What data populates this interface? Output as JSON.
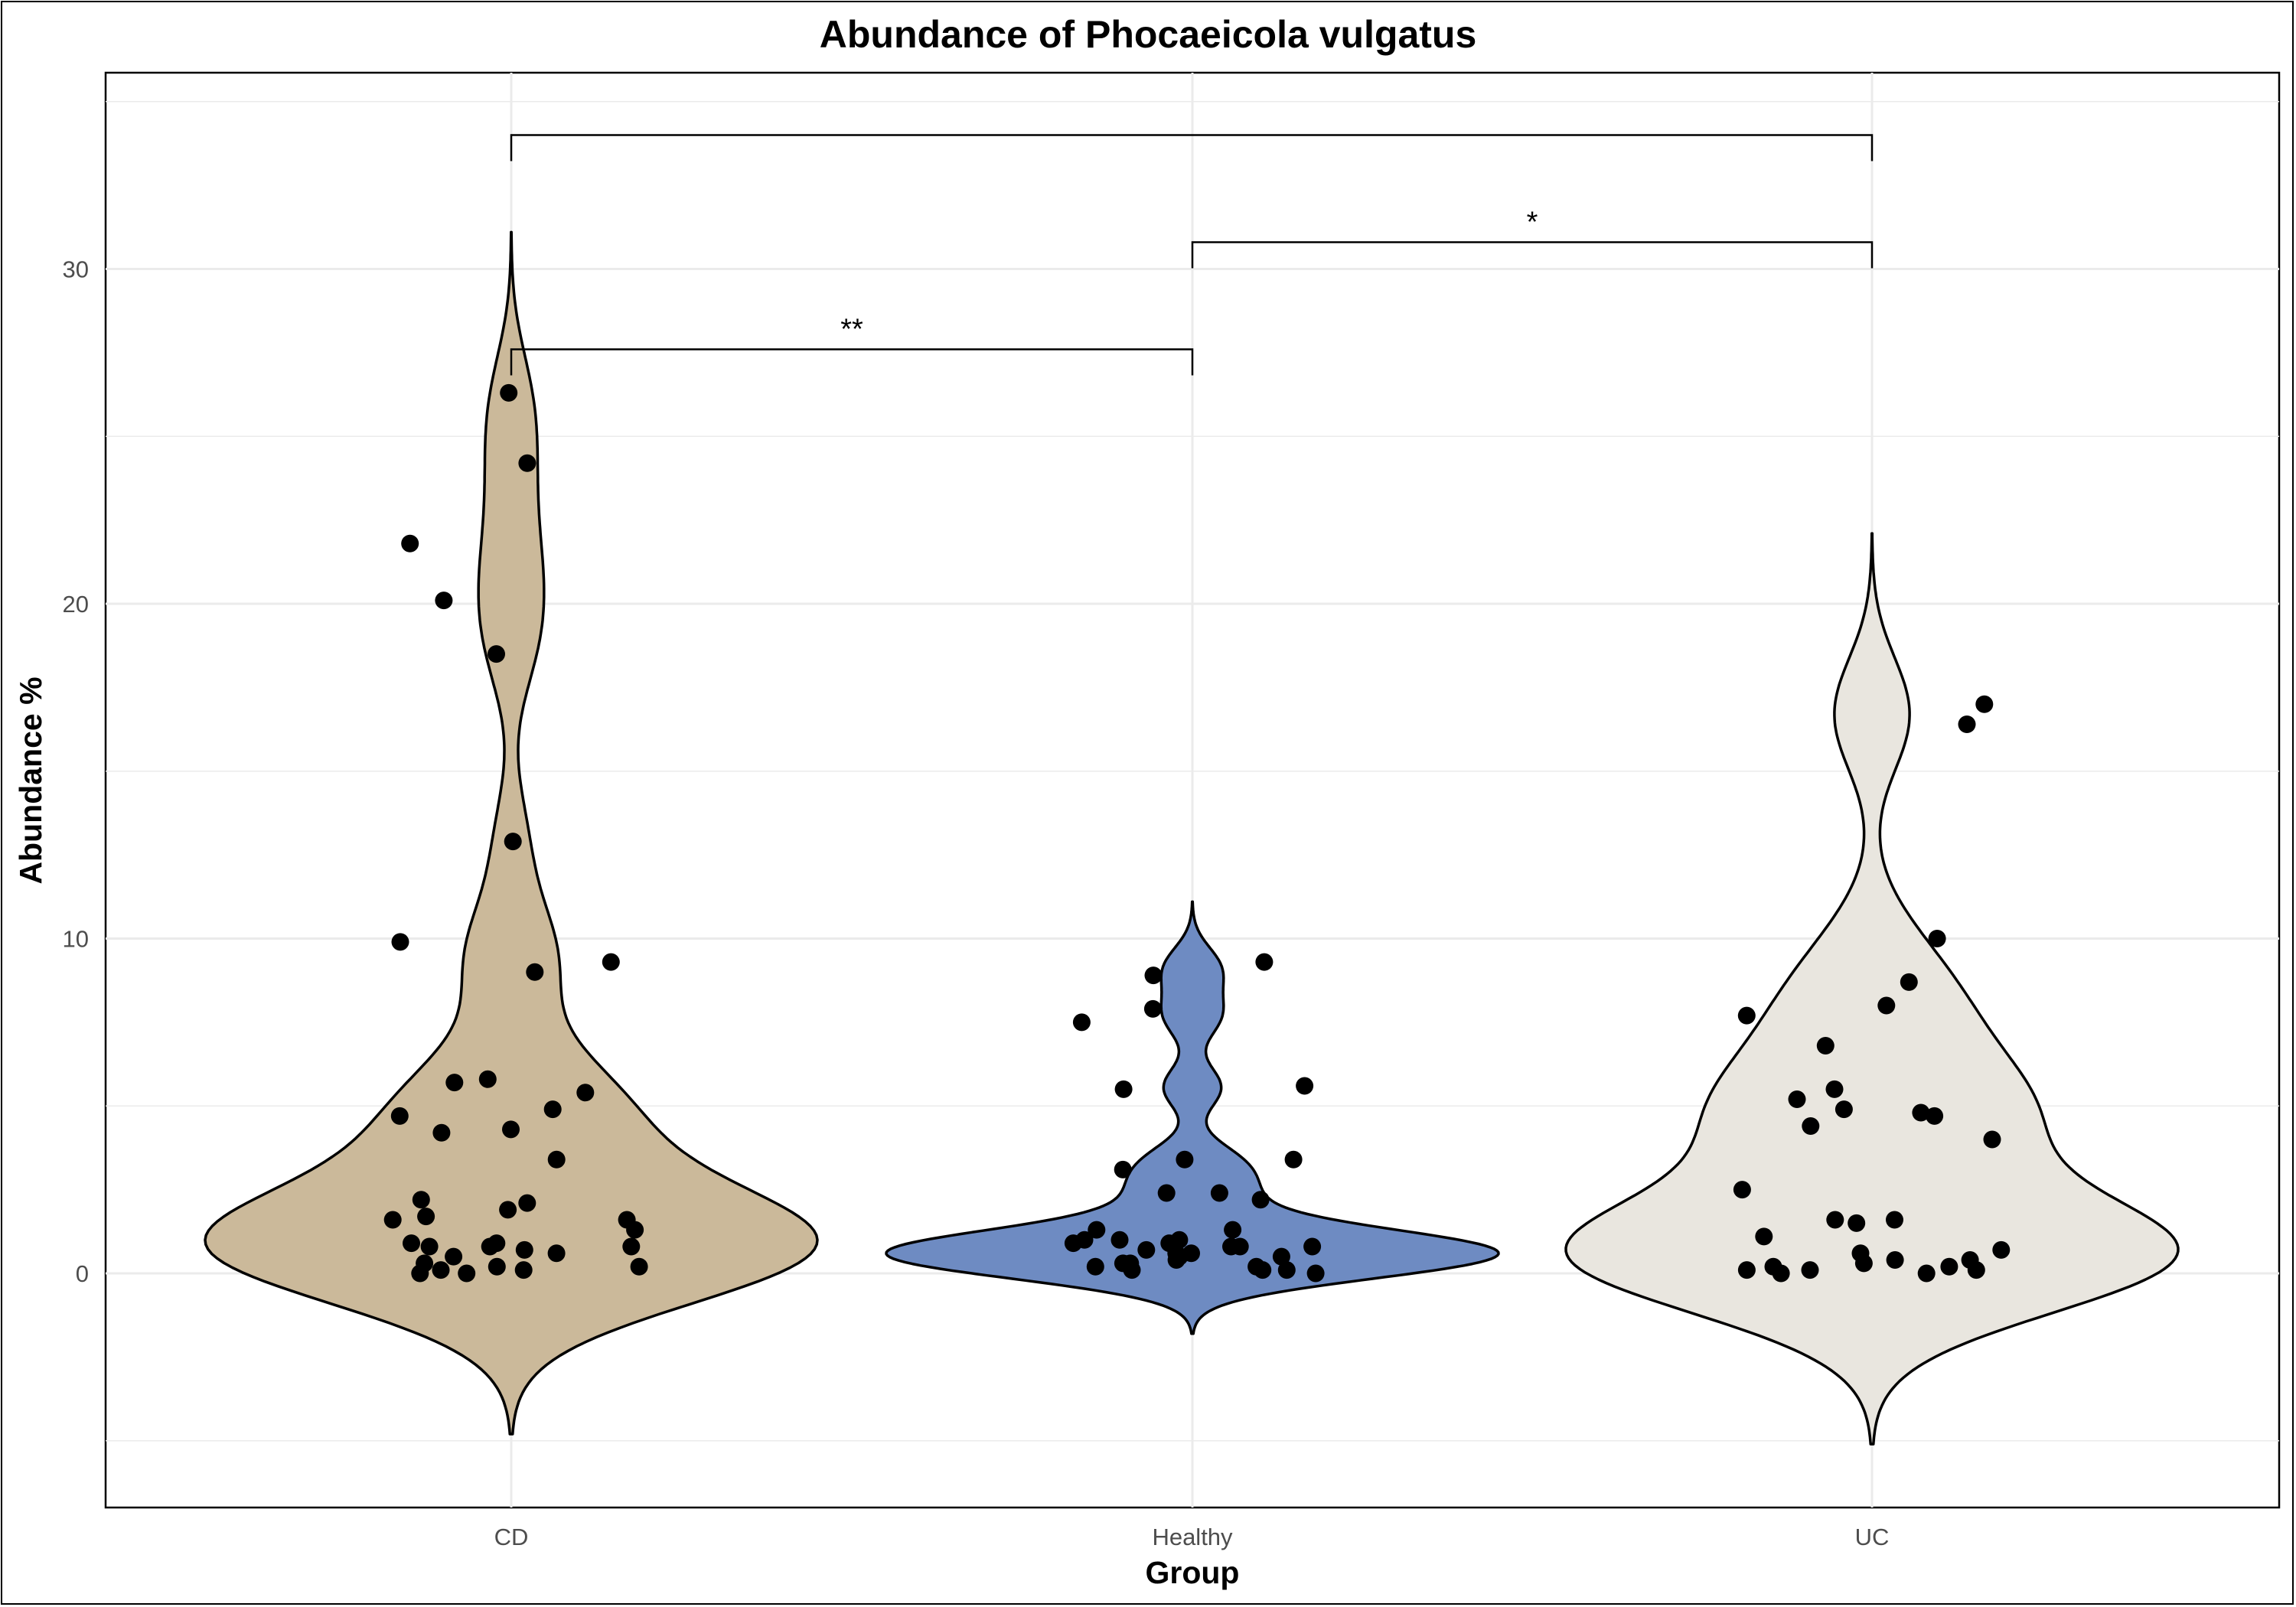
{
  "chart_data": {
    "type": "violin",
    "title": "Abundance of Phocaeicola vulgatus",
    "xlabel": "Group",
    "ylabel": "Abundance %",
    "categories": [
      "CD",
      "Healthy",
      "UC"
    ],
    "ylim": [
      -6.9,
      36.0
    ],
    "y_ticks": [
      0,
      10,
      20,
      30
    ],
    "y_tick_labels": [
      "0",
      "10",
      "20",
      "30"
    ],
    "grid": true,
    "legend": "none",
    "colors": {
      "CD": "#cbb99a",
      "Healthy": "#6e8bc2",
      "UC": "#e9e6df",
      "points": "#000000",
      "grid": "#ebebeb"
    },
    "series": [
      {
        "name": "CD",
        "values": [
          26.3,
          24.2,
          21.8,
          20.1,
          18.5,
          12.9,
          9.9,
          9.3,
          9.0,
          5.8,
          5.7,
          5.4,
          4.9,
          4.7,
          4.3,
          4.2,
          3.4,
          2.2,
          2.1,
          1.9,
          1.7,
          1.6,
          1.6,
          1.3,
          0.9,
          0.9,
          0.8,
          0.8,
          0.8,
          0.7,
          0.6,
          0.5,
          0.3,
          0.2,
          0.2,
          0.1,
          0.1,
          0.0,
          0.0
        ],
        "violin_min": -4.8,
        "violin_max": 31.1
      },
      {
        "name": "Healthy",
        "values": [
          9.3,
          8.9,
          7.9,
          7.5,
          5.6,
          5.5,
          3.4,
          3.4,
          3.1,
          2.4,
          2.4,
          2.2,
          1.3,
          1.3,
          1.0,
          1.0,
          1.0,
          0.9,
          0.9,
          0.8,
          0.8,
          0.8,
          0.7,
          0.6,
          0.6,
          0.6,
          0.5,
          0.5,
          0.4,
          0.3,
          0.3,
          0.2,
          0.2,
          0.1,
          0.1,
          0.1,
          0.0
        ],
        "violin_min": -1.8,
        "violin_max": 11.1
      },
      {
        "name": "UC",
        "values": [
          17.0,
          16.4,
          10.0,
          8.7,
          8.0,
          7.7,
          6.8,
          5.5,
          5.2,
          4.9,
          4.8,
          4.7,
          4.4,
          4.0,
          2.5,
          1.6,
          1.6,
          1.5,
          1.1,
          0.7,
          0.6,
          0.4,
          0.4,
          0.3,
          0.2,
          0.2,
          0.1,
          0.1,
          0.1,
          0.0,
          0.0
        ],
        "violin_min": -5.1,
        "violin_max": 22.1
      }
    ],
    "comparisons": [
      {
        "groups": [
          "CD",
          "Healthy"
        ],
        "label": "**",
        "y": 27.6
      },
      {
        "groups": [
          "Healthy",
          "UC"
        ],
        "label": "*",
        "y": 30.8
      },
      {
        "groups": [
          "CD",
          "UC"
        ],
        "label": "",
        "y": 34.0
      }
    ]
  }
}
